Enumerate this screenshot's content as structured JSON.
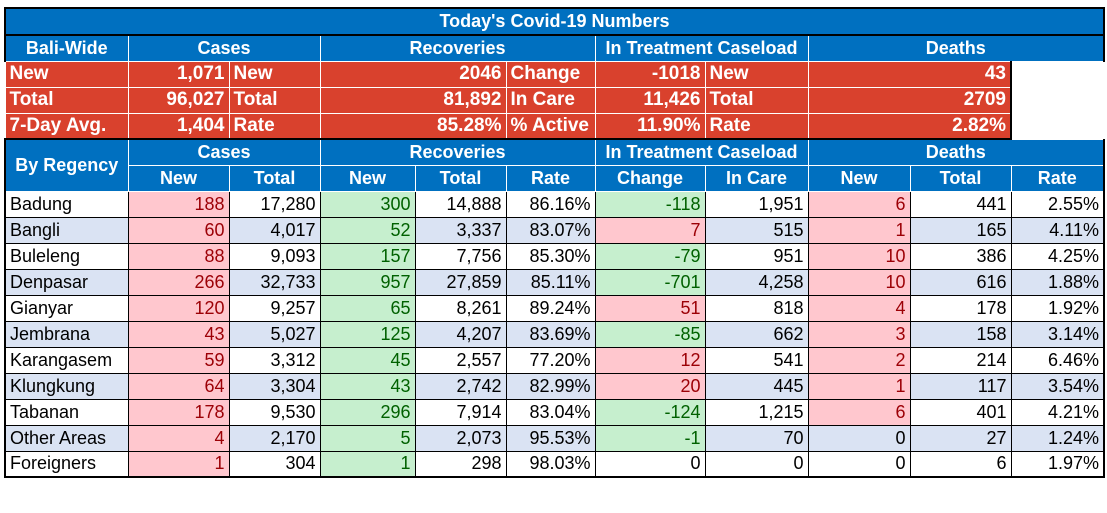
{
  "title": "Today's Covid-19 Numbers",
  "groups": [
    "Cases",
    "Recoveries",
    "In Treatment Caseload",
    "Deaths"
  ],
  "bali_wide": {
    "label": "Bali-Wide",
    "rows": [
      {
        "c_l": "New",
        "c_v": "1,071",
        "r_l": "New",
        "r_v": "2046",
        "t_l": "Change",
        "t_v": "-1018",
        "d_l": "New",
        "d_v": "43"
      },
      {
        "c_l": "Total",
        "c_v": "96,027",
        "r_l": "Total",
        "r_v": "81,892",
        "t_l": "In Care",
        "t_v": "11,426",
        "d_l": "Total",
        "d_v": "2709"
      },
      {
        "c_l": "7-Day Avg.",
        "c_v": "1,404",
        "r_l": "Rate",
        "r_v": "85.28%",
        "t_l": "% Active",
        "t_v": "11.90%",
        "d_l": "Rate",
        "d_v": "2.82%"
      }
    ]
  },
  "by_regency": {
    "label": "By Regency",
    "subheaders": [
      "New",
      "Total",
      "New",
      "Total",
      "Rate",
      "Change",
      "In Care",
      "New",
      "Total",
      "Rate"
    ],
    "rows": [
      {
        "name": "Badung",
        "cn": "188",
        "ct": "17,280",
        "rn": "300",
        "rt": "14,888",
        "rr": "86.16%",
        "tc": "-118",
        "ti": "1,951",
        "dn": "6",
        "dt": "441",
        "dr": "2.55%"
      },
      {
        "name": "Bangli",
        "cn": "60",
        "ct": "4,017",
        "rn": "52",
        "rt": "3,337",
        "rr": "83.07%",
        "tc": "7",
        "ti": "515",
        "dn": "1",
        "dt": "165",
        "dr": "4.11%"
      },
      {
        "name": "Buleleng",
        "cn": "88",
        "ct": "9,093",
        "rn": "157",
        "rt": "7,756",
        "rr": "85.30%",
        "tc": "-79",
        "ti": "951",
        "dn": "10",
        "dt": "386",
        "dr": "4.25%"
      },
      {
        "name": "Denpasar",
        "cn": "266",
        "ct": "32,733",
        "rn": "957",
        "rt": "27,859",
        "rr": "85.11%",
        "tc": "-701",
        "ti": "4,258",
        "dn": "10",
        "dt": "616",
        "dr": "1.88%"
      },
      {
        "name": "Gianyar",
        "cn": "120",
        "ct": "9,257",
        "rn": "65",
        "rt": "8,261",
        "rr": "89.24%",
        "tc": "51",
        "ti": "818",
        "dn": "4",
        "dt": "178",
        "dr": "1.92%"
      },
      {
        "name": "Jembrana",
        "cn": "43",
        "ct": "5,027",
        "rn": "125",
        "rt": "4,207",
        "rr": "83.69%",
        "tc": "-85",
        "ti": "662",
        "dn": "3",
        "dt": "158",
        "dr": "3.14%"
      },
      {
        "name": "Karangasem",
        "cn": "59",
        "ct": "3,312",
        "rn": "45",
        "rt": "2,557",
        "rr": "77.20%",
        "tc": "12",
        "ti": "541",
        "dn": "2",
        "dt": "214",
        "dr": "6.46%"
      },
      {
        "name": "Klungkung",
        "cn": "64",
        "ct": "3,304",
        "rn": "43",
        "rt": "2,742",
        "rr": "82.99%",
        "tc": "20",
        "ti": "445",
        "dn": "1",
        "dt": "117",
        "dr": "3.54%"
      },
      {
        "name": "Tabanan",
        "cn": "178",
        "ct": "9,530",
        "rn": "296",
        "rt": "7,914",
        "rr": "83.04%",
        "tc": "-124",
        "ti": "1,215",
        "dn": "6",
        "dt": "401",
        "dr": "4.21%"
      },
      {
        "name": "Other Areas",
        "cn": "4",
        "ct": "2,170",
        "rn": "5",
        "rt": "2,073",
        "rr": "95.53%",
        "tc": "-1",
        "ti": "70",
        "dn": "0",
        "dt": "27",
        "dr": "1.24%"
      },
      {
        "name": "Foreigners",
        "cn": "1",
        "ct": "304",
        "rn": "1",
        "rt": "298",
        "rr": "98.03%",
        "tc": "0",
        "ti": "0",
        "dn": "0",
        "dt": "6",
        "dr": "1.97%"
      }
    ]
  },
  "colors": {
    "header_blue": "#0070c0",
    "alert_red": "#d9412d",
    "pink": "#ffc7ce",
    "green": "#c6efce",
    "band_blue": "#dae3f3"
  }
}
